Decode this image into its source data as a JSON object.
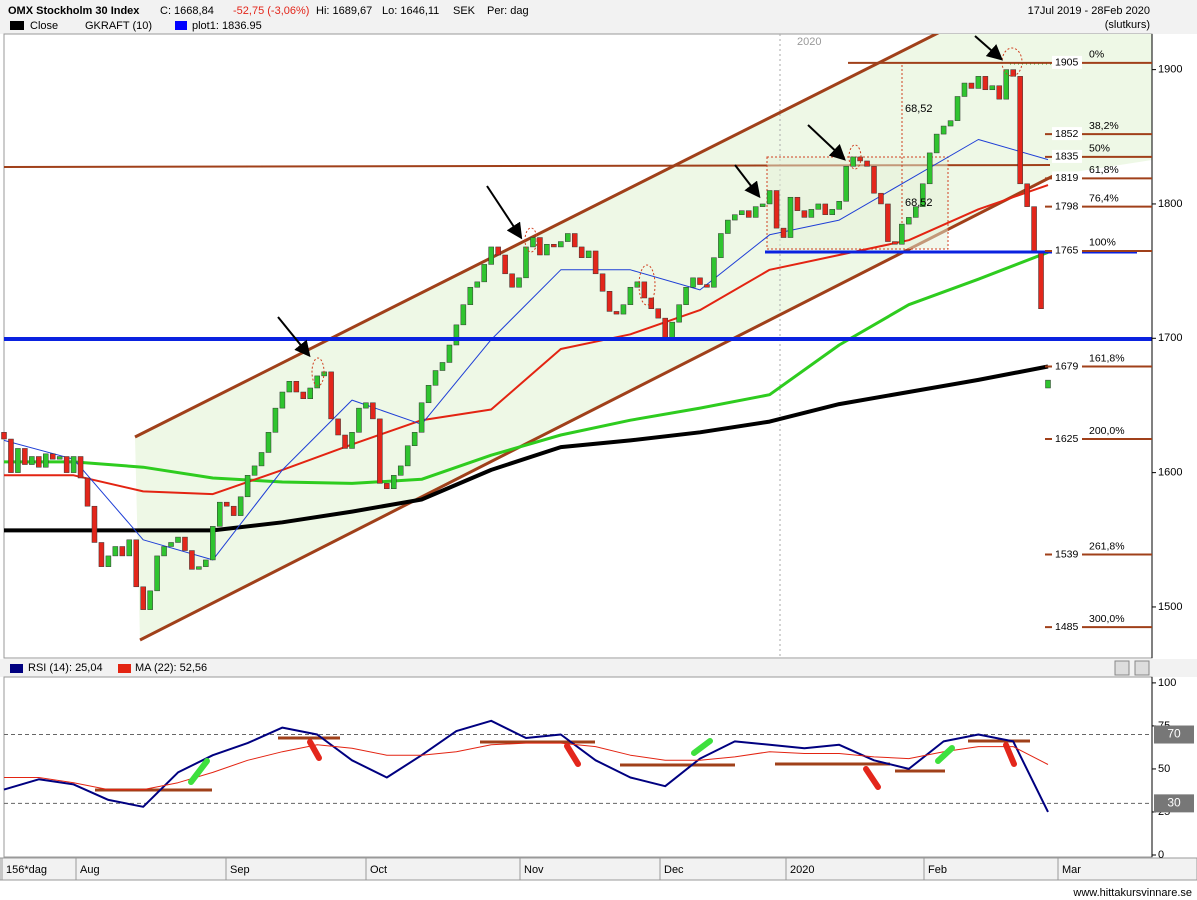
{
  "chart_data": [
    {
      "type": "candlestick",
      "title": "OMX Stockholm 30 Index",
      "quote": "C: 1668,84",
      "change": "-52,75 (-3,06%)",
      "high": "Hi: 1689,67",
      "low": "Lo: 1646,11",
      "currency": "SEK",
      "period": "Per: dag",
      "date_range": "17Jul 2019 - 28Feb 2020",
      "price_type": "(slutkurs)",
      "legend": [
        "Close",
        "GKRAFT (10)",
        "plot1: 1836.95"
      ],
      "year_marker": "2020",
      "annotations": [
        "68,52",
        "68,52"
      ],
      "x_labels": [
        "156*dag",
        "Aug",
        "Sep",
        "Oct",
        "Nov",
        "Dec",
        "2020",
        "Feb",
        "Mar"
      ],
      "footer": "www.hittakursvinnare.se",
      "open": [
        1630,
        1625,
        1600,
        1618,
        1606,
        1612,
        1604,
        1614,
        1610,
        1612,
        1600,
        1612,
        1596,
        1575,
        1548,
        1530,
        1538,
        1545,
        1538,
        1550,
        1515,
        1498,
        1512,
        1538,
        1545,
        1548,
        1552,
        1542,
        1528,
        1530,
        1535,
        1560,
        1578,
        1575,
        1568,
        1582,
        1598,
        1605,
        1615,
        1630,
        1648,
        1660,
        1668,
        1660,
        1655,
        1663,
        1672,
        1675,
        1640,
        1628,
        1618,
        1630,
        1648,
        1652,
        1640,
        1592,
        1588,
        1598,
        1605,
        1620,
        1630,
        1652,
        1665,
        1676,
        1682,
        1695,
        1710,
        1725,
        1738,
        1742,
        1755,
        1768,
        1762,
        1748,
        1738,
        1745,
        1768,
        1775,
        1762,
        1770,
        1768,
        1772,
        1778,
        1768,
        1760,
        1765,
        1748,
        1735,
        1720,
        1718,
        1725,
        1738,
        1742,
        1730,
        1722,
        1715,
        1700,
        1712,
        1725,
        1738,
        1745,
        1740,
        1738,
        1760,
        1778,
        1788,
        1792,
        1795,
        1790,
        1798,
        1800,
        1810,
        1782,
        1775,
        1805,
        1795,
        1790,
        1796,
        1800,
        1792,
        1796,
        1802,
        1828,
        1835,
        1832,
        1828,
        1808,
        1800,
        1772,
        1770,
        1785,
        1790,
        1798,
        1815,
        1838,
        1852,
        1858,
        1862,
        1880,
        1890,
        1886,
        1895,
        1885,
        1888,
        1878,
        1900,
        1895,
        1815,
        1798,
        1765,
        1663
      ],
      "close": [
        1625,
        1600,
        1618,
        1606,
        1612,
        1604,
        1614,
        1610,
        1612,
        1600,
        1612,
        1596,
        1575,
        1548,
        1530,
        1538,
        1545,
        1538,
        1550,
        1515,
        1498,
        1512,
        1538,
        1545,
        1548,
        1552,
        1542,
        1528,
        1530,
        1535,
        1560,
        1578,
        1575,
        1568,
        1582,
        1598,
        1605,
        1615,
        1630,
        1648,
        1660,
        1668,
        1660,
        1655,
        1663,
        1672,
        1675,
        1640,
        1628,
        1618,
        1630,
        1648,
        1652,
        1640,
        1592,
        1588,
        1598,
        1605,
        1620,
        1630,
        1652,
        1665,
        1676,
        1682,
        1695,
        1710,
        1725,
        1738,
        1742,
        1755,
        1768,
        1762,
        1748,
        1738,
        1745,
        1768,
        1775,
        1762,
        1770,
        1768,
        1772,
        1778,
        1768,
        1760,
        1765,
        1748,
        1735,
        1720,
        1718,
        1725,
        1738,
        1742,
        1730,
        1722,
        1715,
        1700,
        1712,
        1725,
        1738,
        1745,
        1740,
        1738,
        1760,
        1778,
        1788,
        1792,
        1795,
        1790,
        1798,
        1800,
        1810,
        1782,
        1775,
        1805,
        1795,
        1790,
        1796,
        1800,
        1792,
        1796,
        1802,
        1828,
        1835,
        1832,
        1828,
        1808,
        1800,
        1772,
        1770,
        1785,
        1790,
        1798,
        1815,
        1838,
        1852,
        1858,
        1862,
        1880,
        1890,
        1886,
        1895,
        1885,
        1888,
        1878,
        1900,
        1895,
        1815,
        1798,
        1765,
        1722,
        1668.84
      ],
      "up_color": "#2fc42f",
      "down_color": "#e3261b",
      "series": [
        {
          "color": "#000000",
          "width": 4,
          "values": [
            1557,
            1557,
            1557,
            1557,
            1563,
            1571,
            1580,
            1602,
            1619,
            1624,
            1630,
            1638,
            1651,
            1660,
            1669,
            1679
          ]
        },
        {
          "color": "#2ecc1f",
          "width": 3,
          "values": [
            1608,
            1608,
            1604,
            1596,
            1593,
            1592,
            1595,
            1613,
            1628,
            1639,
            1648,
            1658,
            1695,
            1725,
            1744,
            1764
          ]
        },
        {
          "color": "#e32412",
          "width": 2,
          "values": [
            1598,
            1598,
            1586,
            1584,
            1602,
            1621,
            1639,
            1647,
            1692,
            1703,
            1721,
            1751,
            1762,
            1773,
            1796,
            1814
          ]
        },
        {
          "color": "#1f3fd6",
          "width": 1,
          "values": [
            1624,
            1610,
            1550,
            1535,
            1602,
            1654,
            1636,
            1699,
            1751,
            1751,
            1736,
            1777,
            1788,
            1818,
            1848,
            1833
          ]
        }
      ],
      "levels": [
        {
          "value": 1905,
          "label": "0%"
        },
        {
          "value": 1852,
          "label": "38,2%"
        },
        {
          "value": 1835,
          "label": "50%"
        },
        {
          "value": 1819,
          "label": "61,8%"
        },
        {
          "value": 1798,
          "label": "76,4%"
        },
        {
          "value": 1765,
          "label": "100%"
        },
        {
          "value": 1679,
          "label": "161,8%"
        },
        {
          "value": 1625,
          "label": "200,0%"
        },
        {
          "value": 1539,
          "label": "261,8%"
        },
        {
          "value": 1485,
          "label": "300,0%"
        }
      ],
      "ylim": [
        1462,
        1928
      ],
      "yticks": [
        1500,
        1600,
        1700,
        1800,
        1900
      ]
    },
    {
      "type": "line",
      "series": [
        {
          "name": "RSI (14): 25,04",
          "color": "#000080",
          "values": [
            38,
            44,
            41,
            32,
            28,
            48,
            58,
            65,
            74,
            70,
            55,
            45,
            58,
            72,
            78,
            68,
            70,
            55,
            45,
            40,
            56,
            66,
            64,
            62,
            64,
            55,
            50,
            66,
            70,
            66,
            25.04
          ]
        },
        {
          "name": "MA (22): 52,56",
          "color": "#e32412",
          "values": [
            45,
            45,
            42,
            38,
            38,
            42,
            48,
            55,
            60,
            64,
            62,
            58,
            58,
            60,
            64,
            65,
            65,
            63,
            58,
            55,
            55,
            57,
            60,
            59,
            59,
            57,
            56,
            60,
            63,
            63,
            52.56
          ]
        }
      ],
      "levels": [
        70,
        30
      ],
      "ylim": [
        0,
        104
      ],
      "yticks": [
        0,
        25,
        50,
        75,
        100
      ]
    }
  ]
}
